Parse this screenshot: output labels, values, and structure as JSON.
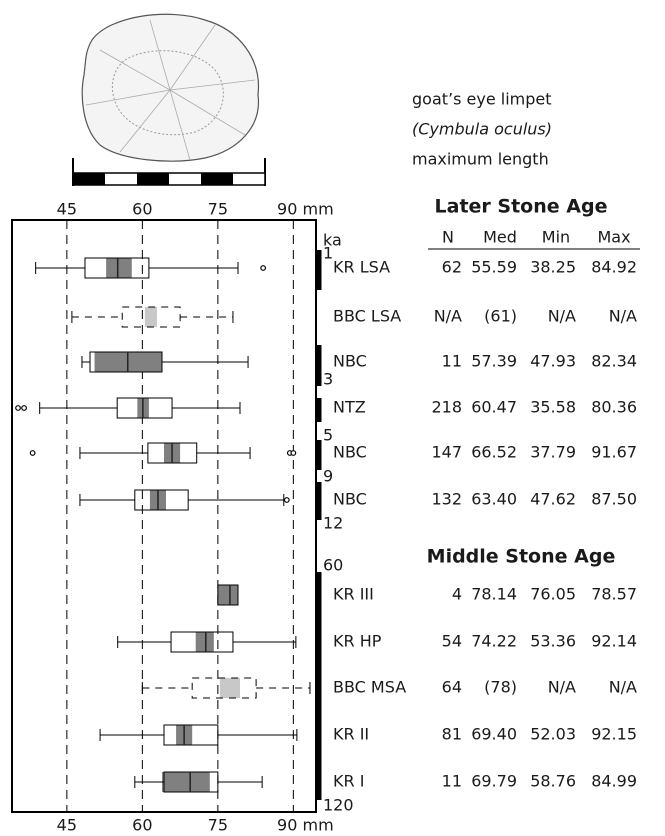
{
  "legend": {
    "common_name": "goat’s eye limpet",
    "latin_name": "(Cymbula oculus)",
    "measure": "maximum length"
  },
  "chart_data": {
    "type": "box",
    "categories": [
      "KR LSA",
      "BBC LSA",
      "NBC",
      "NTZ",
      "NBC",
      "NBC",
      "KR III",
      "KR HP",
      "BBC MSA",
      "KR II",
      "KR I"
    ],
    "whisker_low": [
      38.8,
      46.0,
      48.0,
      39.6,
      47.6,
      47.6,
      null,
      55.1,
      60.0,
      51.6,
      58.5
    ],
    "q1": [
      48.6,
      56.0,
      49.6,
      55.0,
      61.1,
      58.5,
      75.0,
      65.7,
      69.9,
      64.3,
      64.3
    ],
    "median": [
      55.1,
      null,
      57.1,
      60.1,
      65.9,
      63.1,
      77.4,
      72.6,
      null,
      68.3,
      69.5
    ],
    "q3": [
      61.3,
      67.5,
      63.9,
      65.9,
      70.8,
      69.1,
      79.0,
      78.0,
      82.6,
      75.0,
      75.0
    ],
    "whisker_high": [
      79.0,
      78.0,
      81.0,
      79.4,
      81.4,
      88.1,
      null,
      90.5,
      93.3,
      90.7,
      83.8
    ],
    "shade_low": [
      52.8,
      60.5,
      50.5,
      59.0,
      64.3,
      61.5,
      75.0,
      70.6,
      75.4,
      66.7,
      63.9
    ],
    "shade_high": [
      57.9,
      62.9,
      63.9,
      61.3,
      67.5,
      64.7,
      79.0,
      74.2,
      79.4,
      69.9,
      73.4
    ],
    "outliers": [
      [
        84.0
      ],
      [],
      [],
      [
        35.3,
        36.5
      ],
      [
        38.2,
        89.3,
        90.0
      ],
      [
        88.7
      ],
      [],
      [],
      [],
      [],
      []
    ],
    "dashed": [
      false,
      true,
      false,
      false,
      false,
      false,
      false,
      false,
      true,
      false,
      false
    ],
    "shade_color": "#808080",
    "dashed_shade_color": "#c8c8c8",
    "xlim": [
      34.1,
      94.5
    ],
    "xticks": [
      45,
      60,
      75,
      {
        "value": 90,
        "label": "90 mm"
      }
    ],
    "grid": true,
    "time_axis": {
      "unit": "ka",
      "labels": [
        "1",
        "3",
        "5",
        "9",
        "12",
        "60",
        "120"
      ]
    }
  },
  "table": {
    "columns": [
      "N",
      "Med",
      "Min",
      "Max"
    ],
    "sections": [
      {
        "title": "Later Stone Age"
      },
      {
        "title": "Middle Stone Age"
      }
    ],
    "rows": [
      [
        "62",
        "55.59",
        "38.25",
        "84.92"
      ],
      [
        "N/A",
        "(61)",
        "N/A",
        "N/A"
      ],
      [
        "11",
        "57.39",
        "47.93",
        "82.34"
      ],
      [
        "218",
        "60.47",
        "35.58",
        "80.36"
      ],
      [
        "147",
        "66.52",
        "37.79",
        "91.67"
      ],
      [
        "132",
        "63.40",
        "47.62",
        "87.50"
      ],
      [
        "4",
        "78.14",
        "76.05",
        "78.57"
      ],
      [
        "54",
        "74.22",
        "53.36",
        "92.14"
      ],
      [
        "64",
        "(78)",
        "N/A",
        "N/A"
      ],
      [
        "81",
        "69.40",
        "52.03",
        "92.15"
      ],
      [
        "11",
        "69.79",
        "58.76",
        "84.99"
      ]
    ]
  }
}
